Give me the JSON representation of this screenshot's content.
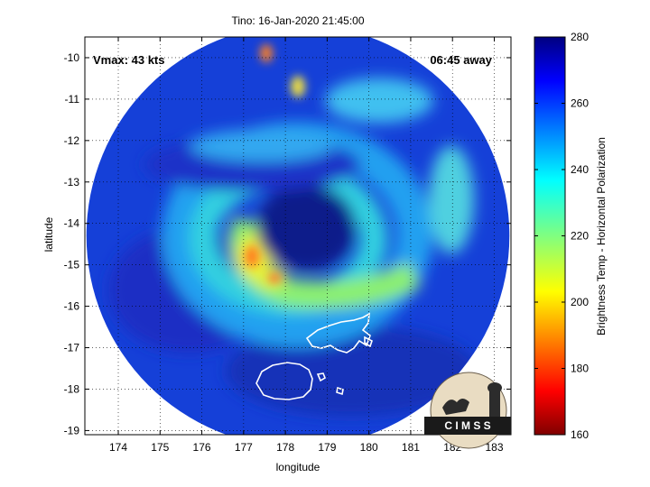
{
  "chart_data": {
    "type": "heatmap",
    "title": "Tino: 16-Jan-2020 21:45:00",
    "xlabel": "longitude",
    "ylabel": "latitude",
    "xlim": [
      173.2,
      183.4
    ],
    "ylim": [
      -19.1,
      -9.5
    ],
    "x_ticks": [
      174,
      175,
      176,
      177,
      178,
      179,
      180,
      181,
      182,
      183
    ],
    "y_ticks": [
      -10,
      -11,
      -12,
      -13,
      -14,
      -15,
      -16,
      -17,
      -18,
      -19
    ],
    "grid": true,
    "annotations": {
      "vmax": "Vmax: 43 kts",
      "time_away": "06:45 away"
    },
    "colorbar": {
      "label": "Brightness Temp - Horizontal Polarization",
      "min": 160,
      "max": 280,
      "ticks": [
        160,
        180,
        200,
        220,
        240,
        260,
        280
      ],
      "colormap": "jet"
    },
    "swath_center": [
      178.3,
      -14.3
    ],
    "swath_radius_deg": 5.1,
    "features": {
      "eye_center": [
        178.5,
        -14.1
      ],
      "warm_arc_peak": [
        177.2,
        -14.8
      ]
    },
    "logo_text": "C I M S S"
  },
  "colors": {
    "background": "#ffffff",
    "coastline": "#ffffff",
    "swath_base": "#1540d8"
  }
}
